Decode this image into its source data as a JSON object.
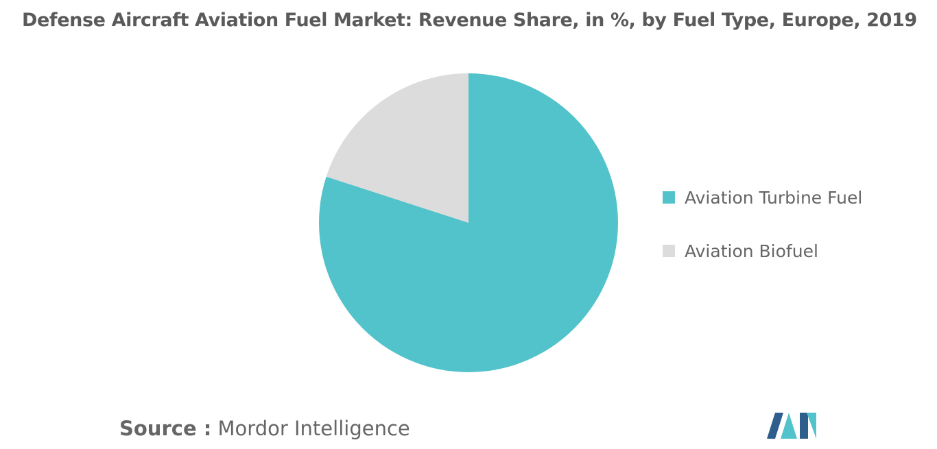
{
  "chart_data": {
    "type": "pie",
    "title": "Defense Aircraft Aviation Fuel Market: Revenue Share, in %, by Fuel Type, Europe, 2019",
    "categories": [
      "Aviation Turbine Fuel",
      "Aviation Biofuel"
    ],
    "values": [
      80,
      20
    ],
    "colors": [
      "#52C3CA",
      "#DCDCDC"
    ],
    "legend_position": "right"
  },
  "source": {
    "label": "Source :",
    "text": "Mordor Intelligence"
  },
  "logo": {
    "icon": "mordor-intelligence-logo-icon",
    "colors": [
      "#2E5E8C",
      "#52C3CA"
    ]
  }
}
